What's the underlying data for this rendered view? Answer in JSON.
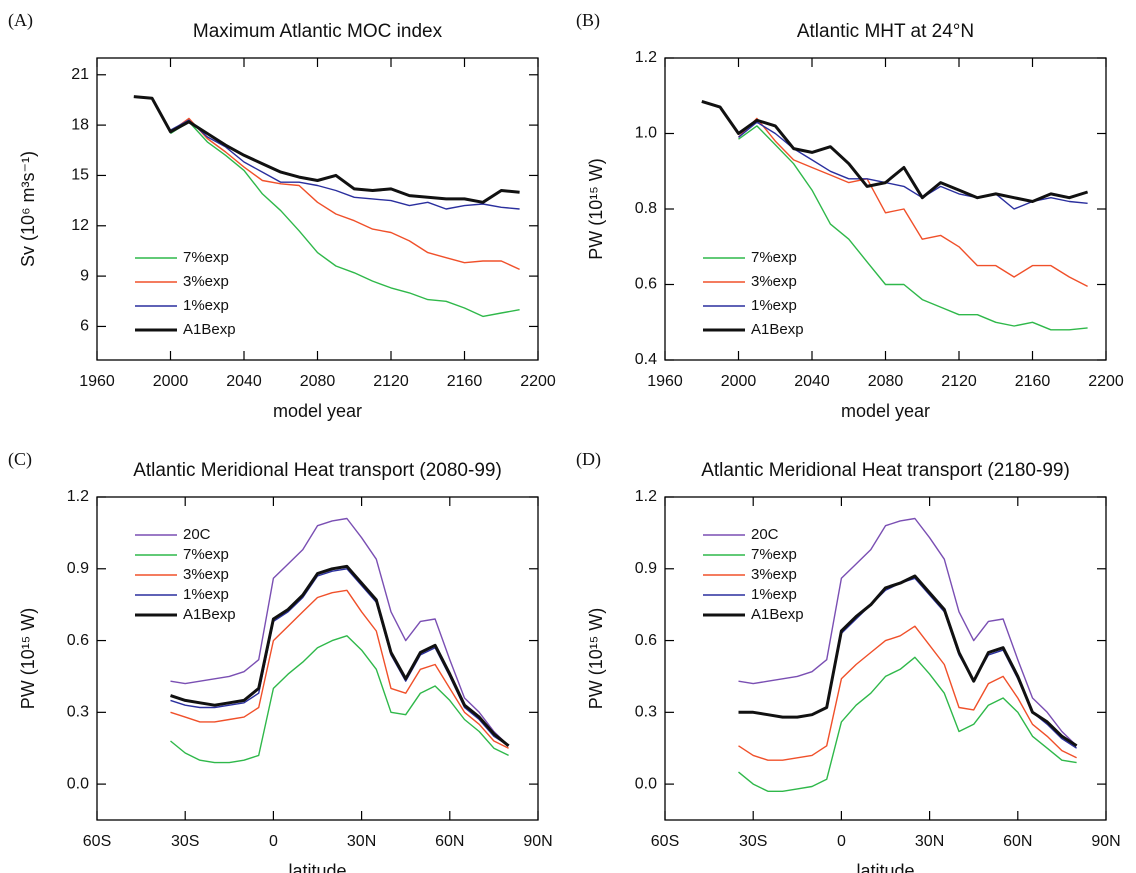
{
  "chart_data": [
    {
      "type": "line",
      "panel_label": "(A)",
      "title": "Maximum Atlantic MOC index",
      "xlabel": "model year",
      "ylabel": "Sv (10⁶ m³s⁻¹)",
      "legend": "lower left",
      "x": [
        1980,
        1990,
        2000,
        2010,
        2020,
        2030,
        2040,
        2050,
        2060,
        2070,
        2080,
        2090,
        2100,
        2110,
        2120,
        2130,
        2140,
        2150,
        2160,
        2170,
        2180,
        2190
      ],
      "xlim": [
        1960,
        2200
      ],
      "xticks": [
        1960,
        2000,
        2040,
        2080,
        2120,
        2160,
        2200
      ],
      "ylim": [
        4,
        22
      ],
      "yticks": [
        6,
        9,
        12,
        15,
        18,
        21
      ],
      "series": [
        {
          "name": "7%exp",
          "color": "#2fb84a",
          "values": [
            null,
            null,
            17.5,
            18.2,
            17.0,
            16.2,
            15.3,
            13.9,
            12.9,
            11.7,
            10.4,
            9.6,
            9.2,
            8.7,
            8.3,
            8.0,
            7.6,
            7.5,
            7.1,
            6.6,
            6.8,
            7.0
          ]
        },
        {
          "name": "3%exp",
          "color": "#f0502a",
          "values": [
            null,
            null,
            17.6,
            18.4,
            17.2,
            16.4,
            15.5,
            14.7,
            14.5,
            14.4,
            13.4,
            12.7,
            12.3,
            11.8,
            11.6,
            11.1,
            10.4,
            10.1,
            9.8,
            9.9,
            9.9,
            9.4
          ]
        },
        {
          "name": "1%exp",
          "color": "#2a2f9e",
          "values": [
            null,
            null,
            17.7,
            18.3,
            17.3,
            16.7,
            15.8,
            15.2,
            14.6,
            14.6,
            14.4,
            14.1,
            13.7,
            13.6,
            13.5,
            13.2,
            13.4,
            13.0,
            13.2,
            13.3,
            13.1,
            13.0
          ]
        },
        {
          "name": "A1Bexp",
          "color": "#111111",
          "values": [
            19.7,
            19.6,
            17.6,
            18.2,
            17.5,
            16.8,
            16.2,
            15.7,
            15.2,
            14.9,
            14.7,
            15.0,
            14.2,
            14.1,
            14.2,
            13.8,
            13.7,
            13.6,
            13.6,
            13.4,
            14.1,
            14.0
          ]
        }
      ]
    },
    {
      "type": "line",
      "panel_label": "(B)",
      "title": "Atlantic MHT at 24°N",
      "xlabel": "model year",
      "ylabel": "PW (10¹⁵ W)",
      "legend": "lower left",
      "x": [
        1980,
        1990,
        2000,
        2010,
        2020,
        2030,
        2040,
        2050,
        2060,
        2070,
        2080,
        2090,
        2100,
        2110,
        2120,
        2130,
        2140,
        2150,
        2160,
        2170,
        2180,
        2190
      ],
      "xlim": [
        1960,
        2200
      ],
      "xticks": [
        1960,
        2000,
        2040,
        2080,
        2120,
        2160,
        2200
      ],
      "ylim": [
        0.4,
        1.2
      ],
      "yticks": [
        {
          "value": 0.4,
          "label": "0.4"
        },
        0.6,
        0.8,
        {
          "value": 1,
          "label": "1.0"
        },
        1.2
      ],
      "series": [
        {
          "name": "7%exp",
          "color": "#2fb84a",
          "values": [
            null,
            null,
            0.985,
            1.02,
            0.97,
            0.92,
            0.85,
            0.76,
            0.72,
            0.66,
            0.6,
            0.6,
            0.56,
            0.54,
            0.52,
            0.52,
            0.5,
            0.49,
            0.5,
            0.48,
            0.48,
            0.485
          ]
        },
        {
          "name": "3%exp",
          "color": "#f0502a",
          "values": [
            null,
            null,
            0.99,
            1.04,
            0.98,
            0.93,
            0.91,
            0.89,
            0.87,
            0.88,
            0.79,
            0.8,
            0.72,
            0.73,
            0.7,
            0.65,
            0.65,
            0.62,
            0.65,
            0.65,
            0.62,
            0.595
          ]
        },
        {
          "name": "1%exp",
          "color": "#2a2f9e",
          "values": [
            null,
            null,
            0.99,
            1.03,
            1.0,
            0.96,
            0.93,
            0.9,
            0.88,
            0.88,
            0.87,
            0.86,
            0.83,
            0.86,
            0.84,
            0.83,
            0.84,
            0.8,
            0.82,
            0.83,
            0.82,
            0.815
          ]
        },
        {
          "name": "A1Bexp",
          "color": "#111111",
          "values": [
            1.085,
            1.07,
            1.0,
            1.035,
            1.02,
            0.96,
            0.95,
            0.965,
            0.92,
            0.86,
            0.87,
            0.91,
            0.83,
            0.87,
            0.85,
            0.83,
            0.84,
            0.83,
            0.82,
            0.84,
            0.83,
            0.845
          ]
        }
      ]
    },
    {
      "type": "line",
      "panel_label": "(C)",
      "title": "Atlantic Meridional Heat transport (2080-99)",
      "xlabel": "latitude",
      "ylabel": "PW (10¹⁵ W)",
      "legend": "upper left",
      "x": [
        -35,
        -30,
        -25,
        -20,
        -15,
        -10,
        -5,
        0,
        5,
        10,
        15,
        20,
        25,
        30,
        35,
        40,
        45,
        50,
        55,
        60,
        65,
        70,
        75,
        80
      ],
      "xlim": [
        -60,
        90
      ],
      "xticks": [
        {
          "value": -60,
          "label": "60S"
        },
        {
          "value": -30,
          "label": "30S"
        },
        0,
        {
          "value": 30,
          "label": "30N"
        },
        {
          "value": 60,
          "label": "60N"
        },
        {
          "value": 90,
          "label": "90N"
        }
      ],
      "ylim": [
        -0.15,
        1.2
      ],
      "yticks": [
        {
          "value": 0,
          "label": "0.0"
        },
        0.3,
        0.6,
        0.9,
        1.2
      ],
      "series": [
        {
          "name": "20C",
          "color": "#7a4fb3",
          "values": [
            0.43,
            0.42,
            0.43,
            0.44,
            0.45,
            0.47,
            0.52,
            0.86,
            0.92,
            0.98,
            1.08,
            1.1,
            1.11,
            1.03,
            0.94,
            0.72,
            0.6,
            0.68,
            0.69,
            0.52,
            0.36,
            0.3,
            0.22,
            0.16
          ]
        },
        {
          "name": "7%exp",
          "color": "#2fb84a",
          "values": [
            0.18,
            0.13,
            0.1,
            0.09,
            0.09,
            0.1,
            0.12,
            0.4,
            0.46,
            0.51,
            0.57,
            0.6,
            0.62,
            0.56,
            0.48,
            0.3,
            0.29,
            0.38,
            0.41,
            0.35,
            0.27,
            0.22,
            0.15,
            0.12
          ]
        },
        {
          "name": "3%exp",
          "color": "#f0502a",
          "values": [
            0.3,
            0.28,
            0.26,
            0.26,
            0.27,
            0.28,
            0.32,
            0.6,
            0.66,
            0.72,
            0.78,
            0.8,
            0.81,
            0.72,
            0.64,
            0.4,
            0.38,
            0.48,
            0.5,
            0.4,
            0.3,
            0.25,
            0.18,
            0.15
          ]
        },
        {
          "name": "1%exp",
          "color": "#2a2f9e",
          "values": [
            0.35,
            0.33,
            0.32,
            0.32,
            0.33,
            0.34,
            0.38,
            0.68,
            0.72,
            0.78,
            0.87,
            0.89,
            0.9,
            0.83,
            0.76,
            0.54,
            0.43,
            0.54,
            0.57,
            0.45,
            0.32,
            0.27,
            0.2,
            0.16
          ]
        },
        {
          "name": "A1Bexp",
          "color": "#111111",
          "values": [
            0.37,
            0.35,
            0.34,
            0.33,
            0.34,
            0.35,
            0.4,
            0.69,
            0.73,
            0.79,
            0.88,
            0.9,
            0.91,
            0.84,
            0.77,
            0.55,
            0.44,
            0.55,
            0.58,
            0.46,
            0.33,
            0.28,
            0.21,
            0.16
          ]
        }
      ]
    },
    {
      "type": "line",
      "panel_label": "(D)",
      "title": "Atlantic Meridional Heat transport (2180-99)",
      "xlabel": "latitude",
      "ylabel": "PW (10¹⁵ W)",
      "legend": "upper left",
      "x": [
        -35,
        -30,
        -25,
        -20,
        -15,
        -10,
        -5,
        0,
        5,
        10,
        15,
        20,
        25,
        30,
        35,
        40,
        45,
        50,
        55,
        60,
        65,
        70,
        75,
        80
      ],
      "xlim": [
        -60,
        90
      ],
      "xticks": [
        {
          "value": -60,
          "label": "60S"
        },
        {
          "value": -30,
          "label": "30S"
        },
        0,
        {
          "value": 30,
          "label": "30N"
        },
        {
          "value": 60,
          "label": "60N"
        },
        {
          "value": 90,
          "label": "90N"
        }
      ],
      "ylim": [
        -0.15,
        1.2
      ],
      "yticks": [
        {
          "value": 0,
          "label": "0.0"
        },
        0.3,
        0.6,
        0.9,
        1.2
      ],
      "series": [
        {
          "name": "20C",
          "color": "#7a4fb3",
          "values": [
            0.43,
            0.42,
            0.43,
            0.44,
            0.45,
            0.47,
            0.52,
            0.86,
            0.92,
            0.98,
            1.08,
            1.1,
            1.11,
            1.03,
            0.94,
            0.72,
            0.6,
            0.68,
            0.69,
            0.52,
            0.36,
            0.3,
            0.22,
            0.16
          ]
        },
        {
          "name": "7%exp",
          "color": "#2fb84a",
          "values": [
            0.05,
            0.0,
            -0.03,
            -0.03,
            -0.02,
            -0.01,
            0.02,
            0.26,
            0.33,
            0.38,
            0.45,
            0.48,
            0.53,
            0.46,
            0.38,
            0.22,
            0.25,
            0.33,
            0.36,
            0.3,
            0.2,
            0.15,
            0.1,
            0.09
          ]
        },
        {
          "name": "3%exp",
          "color": "#f0502a",
          "values": [
            0.16,
            0.12,
            0.1,
            0.1,
            0.11,
            0.12,
            0.16,
            0.44,
            0.5,
            0.55,
            0.6,
            0.62,
            0.66,
            0.58,
            0.5,
            0.32,
            0.31,
            0.42,
            0.45,
            0.36,
            0.25,
            0.2,
            0.14,
            0.11
          ]
        },
        {
          "name": "1%exp",
          "color": "#2a2f9e",
          "values": [
            0.3,
            0.3,
            0.29,
            0.28,
            0.28,
            0.29,
            0.32,
            0.63,
            0.69,
            0.75,
            0.81,
            0.84,
            0.86,
            0.79,
            0.72,
            0.54,
            0.43,
            0.54,
            0.56,
            0.44,
            0.3,
            0.25,
            0.19,
            0.15
          ]
        },
        {
          "name": "A1Bexp",
          "color": "#111111",
          "values": [
            0.3,
            0.3,
            0.29,
            0.28,
            0.28,
            0.29,
            0.32,
            0.64,
            0.7,
            0.75,
            0.82,
            0.84,
            0.87,
            0.8,
            0.73,
            0.55,
            0.43,
            0.55,
            0.57,
            0.45,
            0.3,
            0.26,
            0.2,
            0.16
          ]
        }
      ]
    }
  ]
}
